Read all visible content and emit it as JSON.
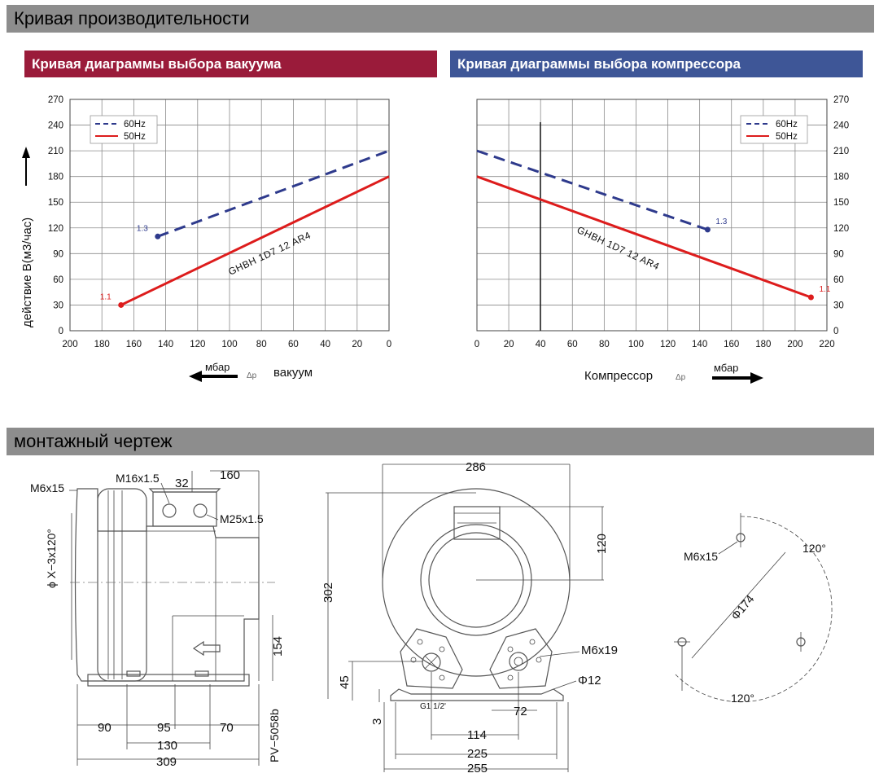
{
  "sections": {
    "performance_title": "Кривая производительности",
    "drawing_title": "монтажный чертеж"
  },
  "colors": {
    "vacuum_header": "#9a1b3a",
    "compressor_header": "#3e5697",
    "series_60hz": "#2e3a8c",
    "series_50hz": "#dd1c1c",
    "band": "#8d8d8d"
  },
  "vacuum_chart": {
    "header": "Кривая диаграммы выбора вакуума",
    "ylabel": "действие B(м3/час)",
    "xunit": "мбар",
    "xlabel": "вакуум",
    "dp_symbol": "Δp",
    "model_label": "GHBH 1D7 12 AR4"
  },
  "compressor_chart": {
    "header": "Кривая диаграммы выбора компрессора",
    "xunit": "мбар",
    "xlabel": "Компрессор",
    "dp_symbol": "Δp",
    "model_label": "GHBH 1D7 12 AR4"
  },
  "chart_data": [
    {
      "type": "line",
      "title": "Кривая диаграммы выбора вакуума",
      "xlabel": "вакуум (мбар)",
      "ylabel": "действие B(м3/час)",
      "xlim": [
        200,
        0
      ],
      "ylim": [
        0,
        270
      ],
      "x_ticks": [
        200,
        180,
        160,
        140,
        120,
        100,
        80,
        60,
        40,
        20,
        0
      ],
      "y_ticks": [
        0,
        30,
        60,
        90,
        120,
        150,
        180,
        210,
        240,
        270
      ],
      "grid": true,
      "legend": "top-left",
      "series": [
        {
          "name": "60Hz",
          "style": "dashed",
          "color": "#2e3a8c",
          "x": [
            145,
            0
          ],
          "y": [
            110,
            210
          ],
          "end_label": "1.3"
        },
        {
          "name": "50Hz",
          "style": "solid",
          "color": "#dd1c1c",
          "x": [
            168,
            0
          ],
          "y": [
            30,
            180
          ],
          "end_label": "1.1"
        }
      ]
    },
    {
      "type": "line",
      "title": "Кривая диаграммы выбора компрессора",
      "xlabel": "Компрессор (мбар)",
      "ylabel": "",
      "xlim": [
        0,
        220
      ],
      "ylim": [
        0,
        270
      ],
      "x_ticks": [
        0,
        20,
        40,
        60,
        80,
        100,
        120,
        140,
        160,
        180,
        200,
        220
      ],
      "y_ticks": [
        0,
        30,
        60,
        90,
        120,
        150,
        180,
        210,
        240,
        270
      ],
      "grid": true,
      "legend": "top-right",
      "series": [
        {
          "name": "60Hz",
          "style": "dashed",
          "color": "#2e3a8c",
          "x": [
            0,
            145
          ],
          "y": [
            210,
            118
          ],
          "end_label": "1.3"
        },
        {
          "name": "50Hz",
          "style": "solid",
          "color": "#dd1c1c",
          "x": [
            0,
            210
          ],
          "y": [
            180,
            39
          ],
          "end_label": "1.1"
        }
      ]
    }
  ],
  "drawing": {
    "side": {
      "m6x15": "M6x15",
      "m16": "M16x1.5",
      "d32": "32",
      "d160": "160",
      "m25": "M25x1.5",
      "phi": "ϕ X−3x120°",
      "d154": "154",
      "d90": "90",
      "d95": "95",
      "d70": "70",
      "d130": "130",
      "d309": "309",
      "pv": "PV−5058b"
    },
    "front": {
      "d286": "286",
      "d120": "120",
      "d302": "302",
      "d45": "45",
      "d3": "3",
      "m6x19": "M6x19",
      "phi12": "Φ12",
      "g1": "G1 1/2'",
      "d72": "72",
      "d114": "114",
      "d225": "225",
      "d255": "255"
    },
    "flange": {
      "m6x15": "M6x15",
      "a120_top": "120°",
      "phi174": "Φ174",
      "a120_bottom": "120°"
    }
  }
}
